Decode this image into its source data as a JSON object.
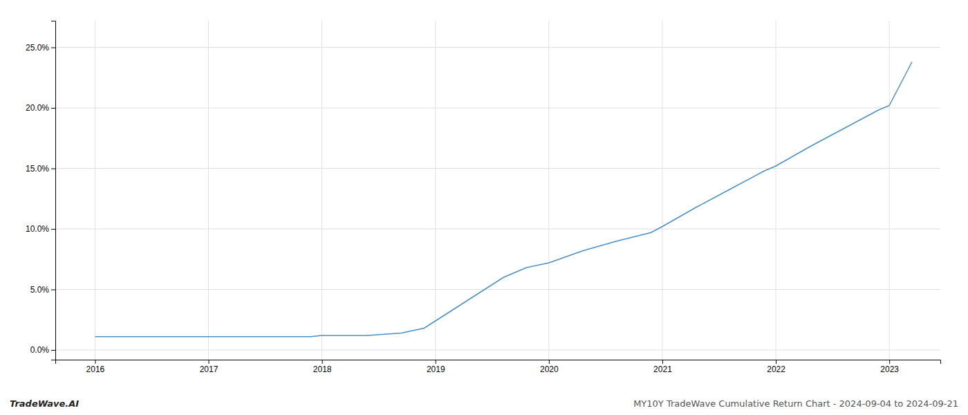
{
  "chart_data": {
    "type": "line",
    "x": [
      2016.0,
      2016.2,
      2016.5,
      2016.8,
      2017.0,
      2017.3,
      2017.6,
      2017.9,
      2018.0,
      2018.2,
      2018.4,
      2018.55,
      2018.7,
      2018.9,
      2019.1,
      2019.4,
      2019.6,
      2019.8,
      2020.0,
      2020.3,
      2020.6,
      2020.9,
      2021.0,
      2021.3,
      2021.6,
      2021.9,
      2022.0,
      2022.3,
      2022.6,
      2022.9,
      2023.0,
      2023.2
    ],
    "values": [
      0.011,
      0.011,
      0.011,
      0.011,
      0.011,
      0.011,
      0.011,
      0.011,
      0.012,
      0.012,
      0.012,
      0.013,
      0.014,
      0.018,
      0.03,
      0.048,
      0.06,
      0.068,
      0.072,
      0.082,
      0.09,
      0.097,
      0.102,
      0.118,
      0.133,
      0.148,
      0.152,
      0.168,
      0.183,
      0.198,
      0.202,
      0.238
    ],
    "color": "#4a90c4",
    "xlim": [
      2015.65,
      2023.45
    ],
    "xticks": [
      2016,
      2017,
      2018,
      2019,
      2020,
      2021,
      2022,
      2023
    ],
    "ylim": [
      -0.008,
      0.272
    ],
    "yticks": [
      {
        "value": 0.0,
        "label": "0.0%"
      },
      {
        "value": 0.05,
        "label": "5.0%"
      },
      {
        "value": 0.1,
        "label": "10.0%"
      },
      {
        "value": 0.15,
        "label": "15.0%"
      },
      {
        "value": 0.2,
        "label": "20.0%"
      },
      {
        "value": 0.25,
        "label": "25.0%"
      }
    ],
    "grid": true,
    "annotations": [
      "TradeWave.AI",
      "MY10Y TradeWave Cumulative Return Chart - 2024-09-04 to 2024-09-21"
    ]
  }
}
